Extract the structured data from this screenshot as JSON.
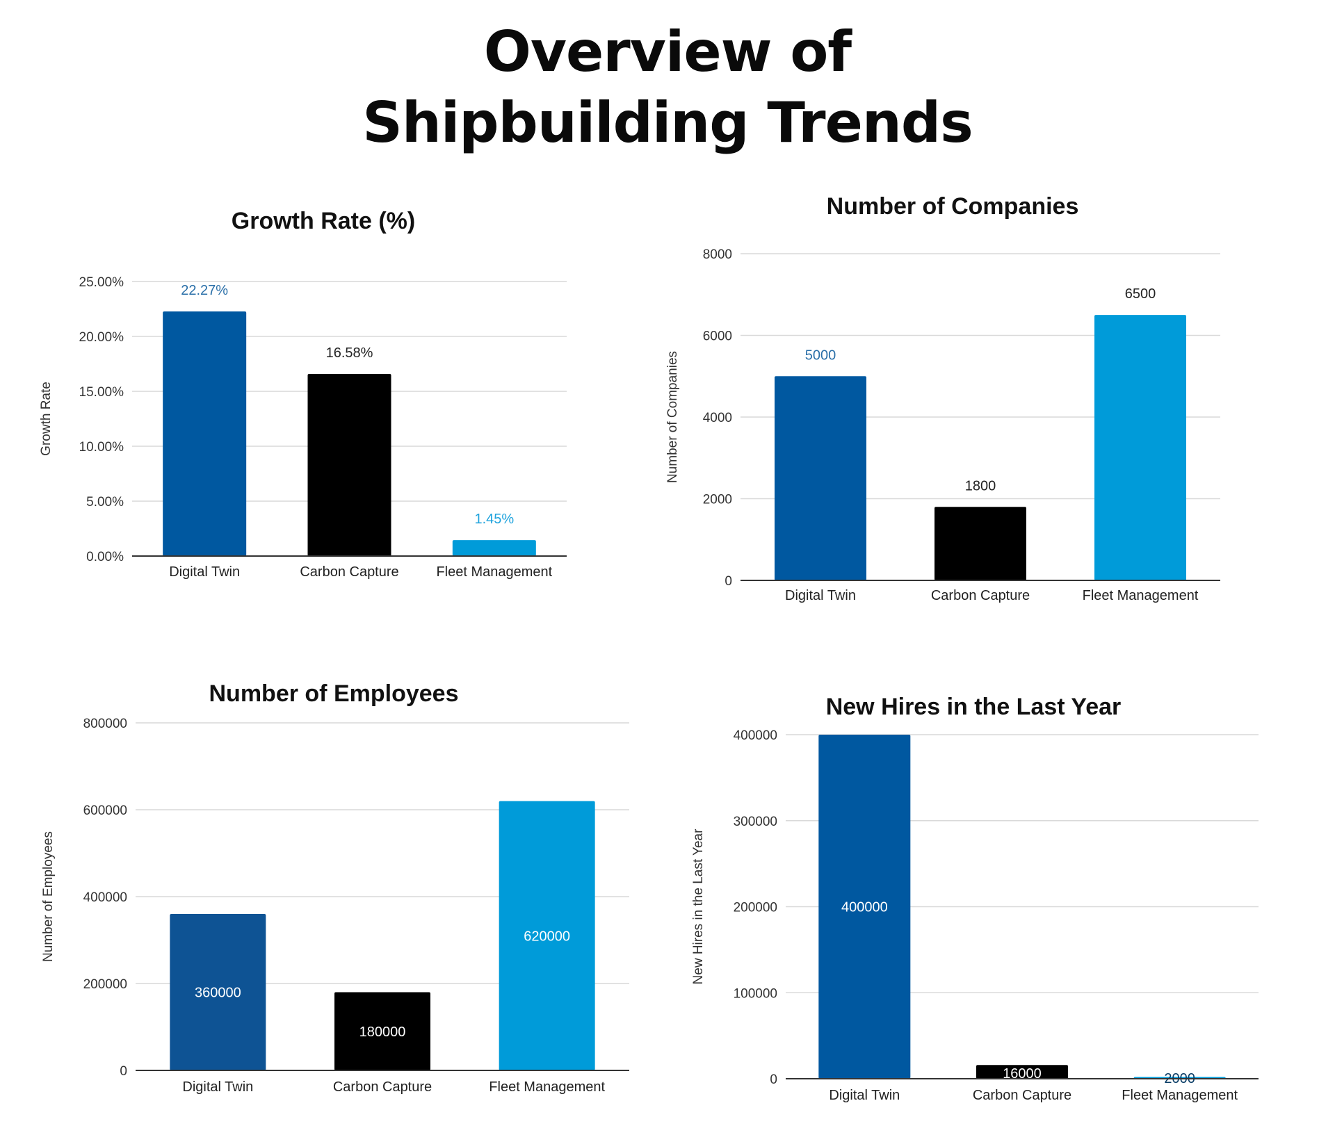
{
  "page": {
    "title_line1": "Overview of",
    "title_line2": "Shipbuilding Trends"
  },
  "chart_data": [
    {
      "id": "growth",
      "type": "bar",
      "title": "Growth Rate (%)",
      "xlabel": "",
      "ylabel": "Growth Rate",
      "categories": [
        "Digital Twin",
        "Carbon Capture",
        "Fleet Management"
      ],
      "values": [
        22.27,
        16.58,
        1.45
      ],
      "data_labels": [
        "22.27%",
        "16.58%",
        "1.45%"
      ],
      "label_position": "above",
      "label_colors": [
        "#2a6fa8",
        "#222222",
        "#1fa3dd"
      ],
      "colors": [
        "#0058a0",
        "#000000",
        "#009bd9"
      ],
      "ylim": [
        0,
        25
      ],
      "yticks": [
        0,
        5,
        10,
        15,
        20,
        25
      ],
      "ytick_labels": [
        "0.00%",
        "5.00%",
        "10.00%",
        "15.00%",
        "20.00%",
        "25.00%"
      ],
      "grid": true,
      "legend": "none"
    },
    {
      "id": "companies",
      "type": "bar",
      "title": "Number of Companies",
      "xlabel": "",
      "ylabel": "Number of Companies",
      "categories": [
        "Digital Twin",
        "Carbon Capture",
        "Fleet Management"
      ],
      "values": [
        5000,
        1800,
        6500
      ],
      "data_labels": [
        "5000",
        "1800",
        "6500"
      ],
      "label_position": "above",
      "label_colors": [
        "#2a6fa8",
        "#222222",
        "#222222"
      ],
      "colors": [
        "#0058a0",
        "#000000",
        "#009bd9"
      ],
      "ylim": [
        0,
        8000
      ],
      "yticks": [
        0,
        2000,
        4000,
        6000,
        8000
      ],
      "ytick_labels": [
        "0",
        "2000",
        "4000",
        "6000",
        "8000"
      ],
      "grid": true,
      "legend": "none"
    },
    {
      "id": "employees",
      "type": "bar",
      "title": "Number of Employees",
      "xlabel": "",
      "ylabel": "Number of Employees",
      "categories": [
        "Digital Twin",
        "Carbon Capture",
        "Fleet Management"
      ],
      "values": [
        360000,
        180000,
        620000
      ],
      "data_labels": [
        "360000",
        "180000",
        "620000"
      ],
      "label_position": "center",
      "label_colors": [
        "#ffffff",
        "#ffffff",
        "#ffffff"
      ],
      "colors": [
        "#0e5394",
        "#000000",
        "#009bd9"
      ],
      "ylim": [
        0,
        800000
      ],
      "yticks": [
        0,
        200000,
        400000,
        600000,
        800000
      ],
      "ytick_labels": [
        "0",
        "200000",
        "400000",
        "600000",
        "800000"
      ],
      "grid": true,
      "legend": "none"
    },
    {
      "id": "hires",
      "type": "bar",
      "title": "New Hires in the Last Year",
      "xlabel": "",
      "ylabel": "New Hires in the Last Year",
      "categories": [
        "Digital Twin",
        "Carbon Capture",
        "Fleet Management"
      ],
      "values": [
        400000,
        16000,
        2000
      ],
      "data_labels": [
        "400000",
        "16000",
        "2000"
      ],
      "label_position": "center",
      "label_colors": [
        "#ffffff",
        "#ffffff",
        "#0a3d66"
      ],
      "colors": [
        "#0058a0",
        "#000000",
        "#009bd9"
      ],
      "ylim": [
        0,
        400000
      ],
      "yticks": [
        0,
        100000,
        200000,
        300000,
        400000
      ],
      "ytick_labels": [
        "0",
        "100000",
        "200000",
        "300000",
        "400000"
      ],
      "grid": true,
      "legend": "none"
    }
  ]
}
